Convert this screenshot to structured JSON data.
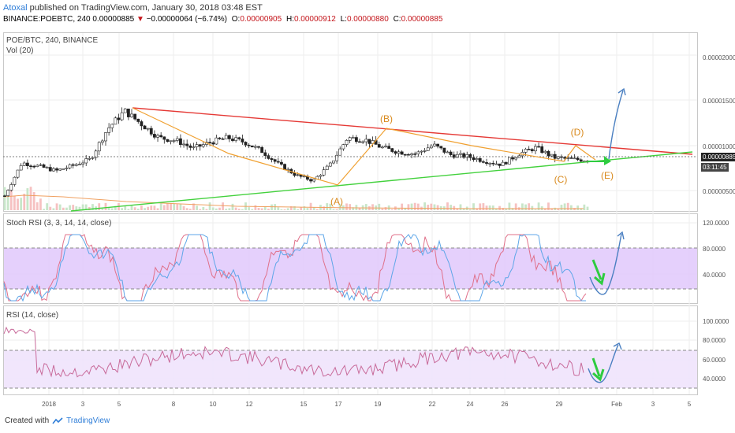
{
  "header": {
    "user": "Atoxal",
    "published": "published on TradingView.com, January 30, 2018 03:48 EST",
    "symbol": "BINANCE:POEBTC, 240",
    "last": "0.00000885",
    "change": "−0.00000064 (−6.74%)",
    "open_label": "O:",
    "open": "0.00000905",
    "high_label": "H:",
    "high": "0.00000912",
    "low_label": "L:",
    "low": "0.00000880",
    "close_label": "C:",
    "close": "0.00000885"
  },
  "panels": {
    "main_title": "POE/BTC, 240, BINANCE",
    "vol_title": "Vol (20)",
    "stoch_title": "Stoch RSI (3, 3, 14, 14, close)",
    "rsi_title": "RSI (14, close)"
  },
  "price_axis": [
    "0.00002000",
    "0.00001500",
    "0.00001000",
    "0.00000500"
  ],
  "price_marker": "0.00000885",
  "time_marker": "03:11:45",
  "stoch_axis": [
    "120.0000",
    "80.0000",
    "40.0000"
  ],
  "rsi_axis": [
    "100.0000",
    "80.0000",
    "60.0000",
    "40.0000"
  ],
  "dates": [
    "2018",
    "3",
    "5",
    "8",
    "10",
    "12",
    "15",
    "17",
    "19",
    "22",
    "24",
    "26",
    "29",
    "Feb",
    "3",
    "5"
  ],
  "annotations": [
    "(A)",
    "(B)",
    "(C)",
    "(D)",
    "(E)"
  ],
  "colors": {
    "resistance": "#e53935",
    "support": "#43d13d",
    "wave": "#f0a030",
    "projection": "#4a7fc1",
    "band": "#e1c8fb",
    "price_marker": "#222222"
  },
  "footer": {
    "created": "Created with",
    "brand": "TradingView"
  },
  "chart_data": {
    "type": "candlestick",
    "title": "POE/BTC, 240, BINANCE",
    "x_ticks": [
      "2018",
      "3",
      "5",
      "8",
      "10",
      "12",
      "15",
      "17",
      "19",
      "22",
      "24",
      "26",
      "29",
      "Feb",
      "3",
      "5"
    ],
    "y_ticks": [
      5e-06,
      1e-05,
      1.5e-05,
      2e-05
    ],
    "approx_close_path": [
      4.5e-06,
      8.2e-06,
      7.8e-06,
      7.3e-06,
      7.9e-06,
      8.6e-06,
      1.2e-05,
      1.4e-05,
      1.25e-05,
      1.1e-05,
      1.07e-05,
      9.8e-06,
      1.05e-05,
      1.1e-05,
      1.05e-05,
      9.5e-06,
      8e-06,
      6.8e-06,
      6.2e-06,
      8e-06,
      1.1e-05,
      1.08e-05,
      9.9e-06,
      9.4e-06,
      9.2e-06,
      1.02e-05,
      9.1e-06,
      8.9e-06,
      8.4e-06,
      8e-06,
      9.2e-06,
      9.9e-06,
      8.8e-06,
      8.6e-06,
      8.5e-06
    ]
  }
}
